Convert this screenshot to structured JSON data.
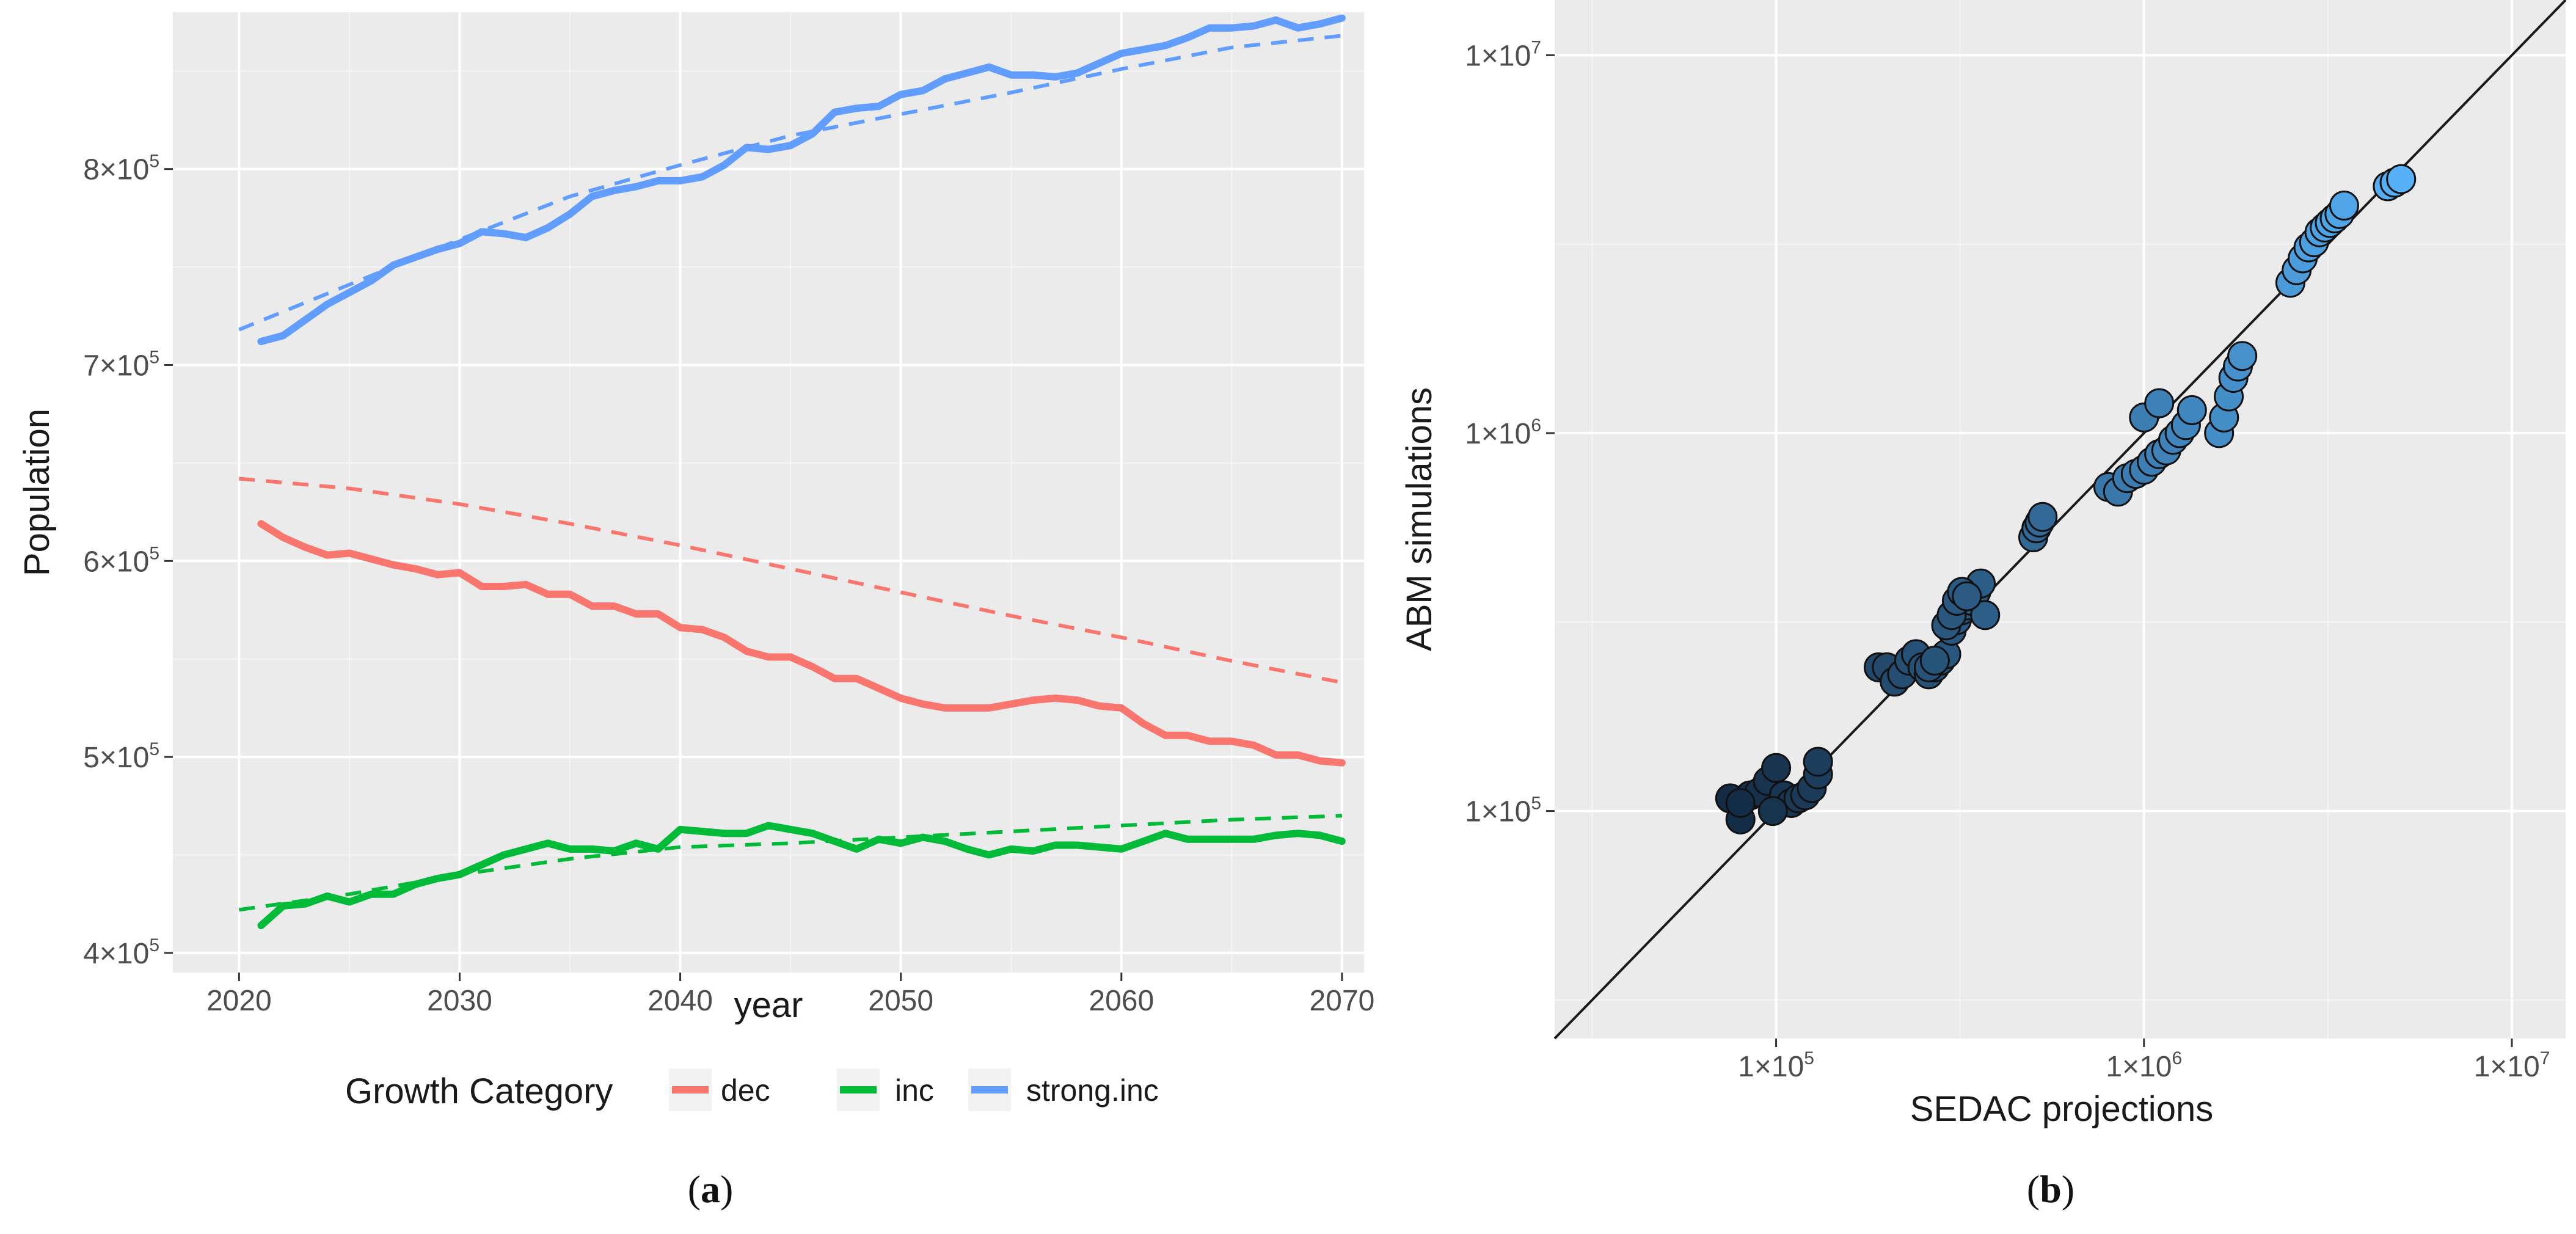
{
  "chart_data": [
    {
      "panel": "(a)",
      "type": "line",
      "xlabel": "year",
      "ylabel": "Population",
      "xlim": [
        2017,
        2071
      ],
      "ylim": [
        390000,
        880000
      ],
      "xticks": [
        2020,
        2030,
        2040,
        2050,
        2060,
        2070
      ],
      "yticks": [
        {
          "value": 400000,
          "mant": "4×10",
          "exp": "5"
        },
        {
          "value": 500000,
          "mant": "5×10",
          "exp": "5"
        },
        {
          "value": 600000,
          "mant": "6×10",
          "exp": "5"
        },
        {
          "value": 700000,
          "mant": "7×10",
          "exp": "5"
        },
        {
          "value": 800000,
          "mant": "8×10",
          "exp": "5"
        }
      ],
      "legend": {
        "title": "Growth Category",
        "position": "bottom",
        "entries": [
          "dec",
          "inc",
          "strong.inc"
        ]
      },
      "series": [
        {
          "name": "dec",
          "style": "solid",
          "color": "#F8766D",
          "x": [
            2021,
            2022,
            2023,
            2024,
            2025,
            2026,
            2027,
            2028,
            2029,
            2030,
            2031,
            2032,
            2033,
            2034,
            2035,
            2036,
            2037,
            2038,
            2039,
            2040,
            2041,
            2042,
            2043,
            2044,
            2045,
            2046,
            2047,
            2048,
            2049,
            2050,
            2051,
            2052,
            2053,
            2054,
            2055,
            2056,
            2057,
            2058,
            2059,
            2060,
            2061,
            2062,
            2063,
            2064,
            2065,
            2066,
            2067,
            2068,
            2069,
            2070
          ],
          "y": [
            619000,
            612000,
            607000,
            603000,
            604000,
            601000,
            598000,
            596000,
            593000,
            594000,
            587000,
            587000,
            588000,
            583000,
            583000,
            577000,
            577000,
            573000,
            573000,
            566000,
            565000,
            561000,
            554000,
            551000,
            551000,
            546000,
            540000,
            540000,
            535000,
            530000,
            527000,
            525000,
            525000,
            525000,
            527000,
            529000,
            530000,
            529000,
            526000,
            525000,
            517000,
            511000,
            511000,
            508000,
            508000,
            506000,
            501000,
            501000,
            498000,
            497000
          ]
        },
        {
          "name": "dec",
          "style": "dashed",
          "color": "#F8766D",
          "x": [
            2020,
            2025,
            2030,
            2035,
            2040,
            2045,
            2050,
            2055,
            2060,
            2065,
            2070
          ],
          "y": [
            642000,
            637000,
            629000,
            619000,
            608000,
            596000,
            584000,
            572000,
            561000,
            549000,
            538000
          ]
        },
        {
          "name": "inc",
          "style": "solid",
          "color": "#00BA38",
          "x": [
            2021,
            2022,
            2023,
            2024,
            2025,
            2026,
            2027,
            2028,
            2029,
            2030,
            2031,
            2032,
            2033,
            2034,
            2035,
            2036,
            2037,
            2038,
            2039,
            2040,
            2041,
            2042,
            2043,
            2044,
            2045,
            2046,
            2047,
            2048,
            2049,
            2050,
            2051,
            2052,
            2053,
            2054,
            2055,
            2056,
            2057,
            2058,
            2059,
            2060,
            2061,
            2062,
            2063,
            2064,
            2065,
            2066,
            2067,
            2068,
            2069,
            2070
          ],
          "y": [
            414000,
            424000,
            425000,
            429000,
            426000,
            430000,
            430000,
            435000,
            438000,
            440000,
            445000,
            450000,
            453000,
            456000,
            453000,
            453000,
            452000,
            456000,
            453000,
            463000,
            462000,
            461000,
            461000,
            465000,
            463000,
            461000,
            457000,
            453000,
            458000,
            456000,
            459000,
            457000,
            453000,
            450000,
            453000,
            452000,
            455000,
            455000,
            454000,
            453000,
            457000,
            461000,
            458000,
            458000,
            458000,
            458000,
            460000,
            461000,
            460000,
            457000
          ]
        },
        {
          "name": "inc",
          "style": "dashed",
          "color": "#00BA38",
          "x": [
            2020,
            2025,
            2030,
            2035,
            2040,
            2045,
            2050,
            2055,
            2060,
            2065,
            2070
          ],
          "y": [
            422000,
            430000,
            440000,
            448000,
            454000,
            456000,
            459000,
            462000,
            465000,
            468000,
            470000
          ]
        },
        {
          "name": "strong.inc",
          "style": "solid",
          "color": "#619CFF",
          "x": [
            2021,
            2022,
            2023,
            2024,
            2025,
            2026,
            2027,
            2028,
            2029,
            2030,
            2031,
            2032,
            2033,
            2034,
            2035,
            2036,
            2037,
            2038,
            2039,
            2040,
            2041,
            2042,
            2043,
            2044,
            2045,
            2046,
            2047,
            2048,
            2049,
            2050,
            2051,
            2052,
            2053,
            2054,
            2055,
            2056,
            2057,
            2058,
            2059,
            2060,
            2061,
            2062,
            2063,
            2064,
            2065,
            2066,
            2067,
            2068,
            2069,
            2070
          ],
          "y": [
            712000,
            715000,
            723000,
            731000,
            737000,
            743000,
            751000,
            755000,
            759000,
            762000,
            768000,
            767000,
            765000,
            770000,
            777000,
            786000,
            789000,
            791000,
            794000,
            794000,
            796000,
            802000,
            811000,
            810000,
            812000,
            818000,
            829000,
            831000,
            832000,
            838000,
            840000,
            846000,
            849000,
            852000,
            848000,
            848000,
            847000,
            849000,
            854000,
            859000,
            861000,
            863000,
            867000,
            872000,
            872000,
            873000,
            876000,
            872000,
            874000,
            877000
          ]
        },
        {
          "name": "strong.inc",
          "style": "dashed",
          "color": "#619CFF",
          "x": [
            2020,
            2025,
            2030,
            2035,
            2040,
            2045,
            2050,
            2055,
            2060,
            2065,
            2070
          ],
          "y": [
            718000,
            741000,
            764000,
            786000,
            802000,
            817000,
            828000,
            839000,
            851000,
            862000,
            868000
          ]
        }
      ]
    },
    {
      "panel": "(b)",
      "type": "scatter",
      "scale": "log10",
      "xlabel": "SEDAC projections",
      "ylabel": "ABM simulations",
      "xlim": [
        25000,
        14000000
      ],
      "ylim": [
        25000,
        14000000
      ],
      "xticks": [
        {
          "value": 100000,
          "mant": "1×10",
          "exp": "5"
        },
        {
          "value": 1000000,
          "mant": "1×10",
          "exp": "6"
        },
        {
          "value": 10000000,
          "mant": "1×10",
          "exp": "7"
        }
      ],
      "yticks": [
        {
          "value": 100000,
          "mant": "1×10",
          "exp": "5"
        },
        {
          "value": 1000000,
          "mant": "1×10",
          "exp": "6"
        },
        {
          "value": 10000000,
          "mant": "1×10",
          "exp": "7"
        }
      ],
      "reference_line": "y = x",
      "point_color_low": "#132B43",
      "point_color_high": "#56B1F7",
      "x": [
        75000,
        80000,
        85000,
        90000,
        95000,
        100000,
        105000,
        110000,
        115000,
        120000,
        125000,
        130000,
        130000,
        80000,
        98000,
        190000,
        200000,
        210000,
        220000,
        230000,
        240000,
        250000,
        260000,
        270000,
        280000,
        290000,
        300000,
        310000,
        320000,
        330000,
        340000,
        350000,
        360000,
        370000,
        290000,
        300000,
        310000,
        320000,
        330000,
        260000,
        270000,
        500000,
        510000,
        520000,
        530000,
        800000,
        850000,
        900000,
        950000,
        1000000,
        1050000,
        1100000,
        1150000,
        1200000,
        1250000,
        1300000,
        1350000,
        1600000,
        1650000,
        1700000,
        1750000,
        1800000,
        1850000,
        1000000,
        1100000,
        2500000,
        2600000,
        2700000,
        2800000,
        2900000,
        3000000,
        3100000,
        3200000,
        3300000,
        3400000,
        3500000,
        4600000,
        4800000,
        5000000
      ],
      "y": [
        108000,
        95000,
        110000,
        112000,
        120000,
        130000,
        110000,
        105000,
        108000,
        110000,
        115000,
        125000,
        135000,
        105000,
        100000,
        240000,
        240000,
        220000,
        230000,
        250000,
        260000,
        240000,
        230000,
        240000,
        250000,
        260000,
        300000,
        320000,
        340000,
        350000,
        360000,
        380000,
        400000,
        330000,
        310000,
        330000,
        360000,
        380000,
        370000,
        240000,
        250000,
        530000,
        560000,
        580000,
        600000,
        720000,
        700000,
        760000,
        780000,
        800000,
        840000,
        880000,
        900000,
        960000,
        1000000,
        1050000,
        1150000,
        1000000,
        1100000,
        1250000,
        1400000,
        1500000,
        1600000,
        1100000,
        1200000,
        2500000,
        2700000,
        2900000,
        3100000,
        3200000,
        3400000,
        3500000,
        3600000,
        3700000,
        3800000,
        4000000,
        4500000,
        4600000,
        4700000
      ]
    }
  ],
  "labels": {
    "panel_a": "a",
    "panel_b": "b"
  }
}
